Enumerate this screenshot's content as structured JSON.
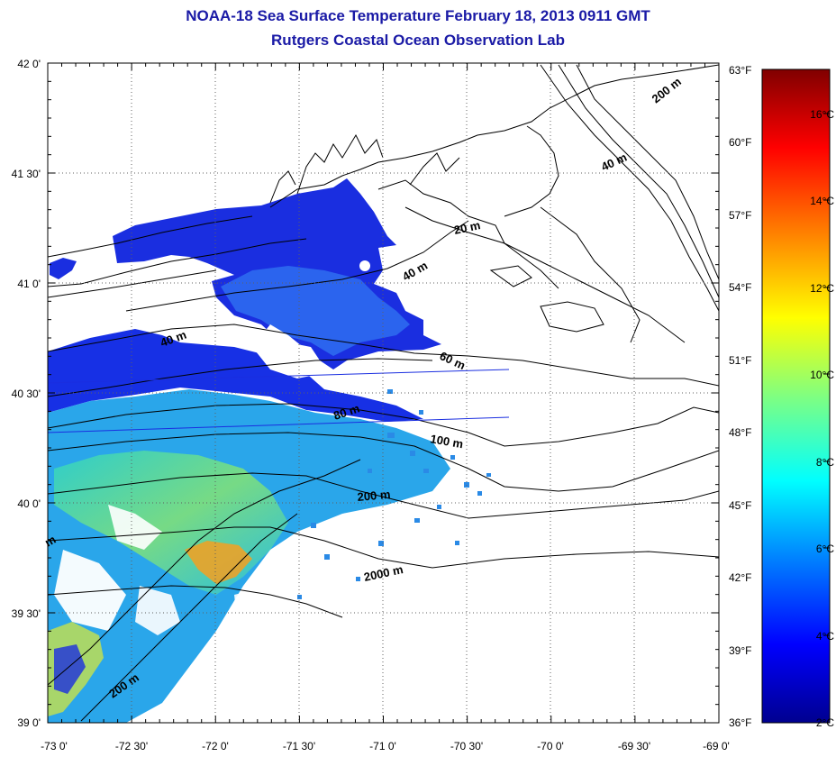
{
  "titles": {
    "line1": "NOAA-18 Sea Surface Temperature February 18, 2013 0911 GMT",
    "line2": "Rutgers Coastal Ocean Observation Lab"
  },
  "map": {
    "lon_range": [
      -73,
      -69
    ],
    "lat_range": [
      39,
      42
    ],
    "lon_ticks": [
      "-73 0'",
      "-72 30'",
      "-72 0'",
      "-71 30'",
      "-71 0'",
      "-70 30'",
      "-70 0'",
      "-69 30'",
      "-69 0'"
    ],
    "lat_ticks": [
      "42 0'",
      "41 30'",
      "41 0'",
      "40 30'",
      "40 0'",
      "39 30'",
      "39 0'"
    ],
    "land_color": "#ffffff",
    "grid": "dotted"
  },
  "isobath_labels": [
    "200 m",
    "40 m",
    "20 m",
    "40 m",
    "40 m",
    "60 m",
    "80 m",
    "100 m",
    "200 m",
    "2000 m",
    "200 m",
    "m"
  ],
  "colorbar": {
    "fahrenheit_labels": [
      "63°F",
      "60°F",
      "57°F",
      "54°F",
      "51°F",
      "48°F",
      "45°F",
      "42°F",
      "39°F",
      "36°F"
    ],
    "celsius_labels": [
      "16°C",
      "14°C",
      "12°C",
      "10°C",
      "8°C",
      "6°C",
      "4°C",
      "2°C"
    ],
    "range_c": [
      2,
      17.2
    ],
    "colors": [
      "#00008f",
      "#0000ff",
      "#0080ff",
      "#00ffff",
      "#80ff80",
      "#ffff00",
      "#ff8000",
      "#ff0000",
      "#800000"
    ]
  }
}
